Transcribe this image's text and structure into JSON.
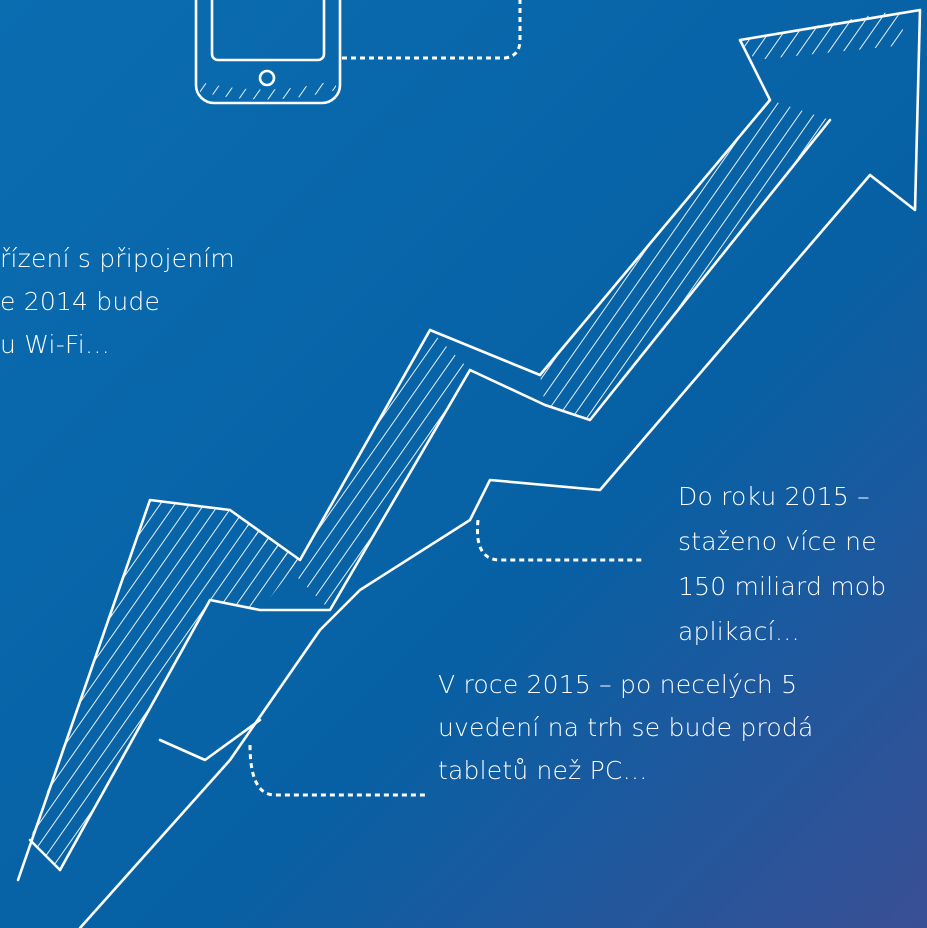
{
  "annotations": [
    {
      "lines": [
        "řízení s připojením",
        "e 2014 bude",
        "u Wi-Fi…"
      ]
    },
    {
      "lines": [
        "Do roku 2015 –",
        "staženo více ne",
        "150 miliard mob",
        "aplikací…"
      ]
    },
    {
      "lines": [
        "V roce 2015 – po necelých 5",
        "uvedení na trh se bude prodá",
        "tabletů než PC…"
      ]
    }
  ]
}
